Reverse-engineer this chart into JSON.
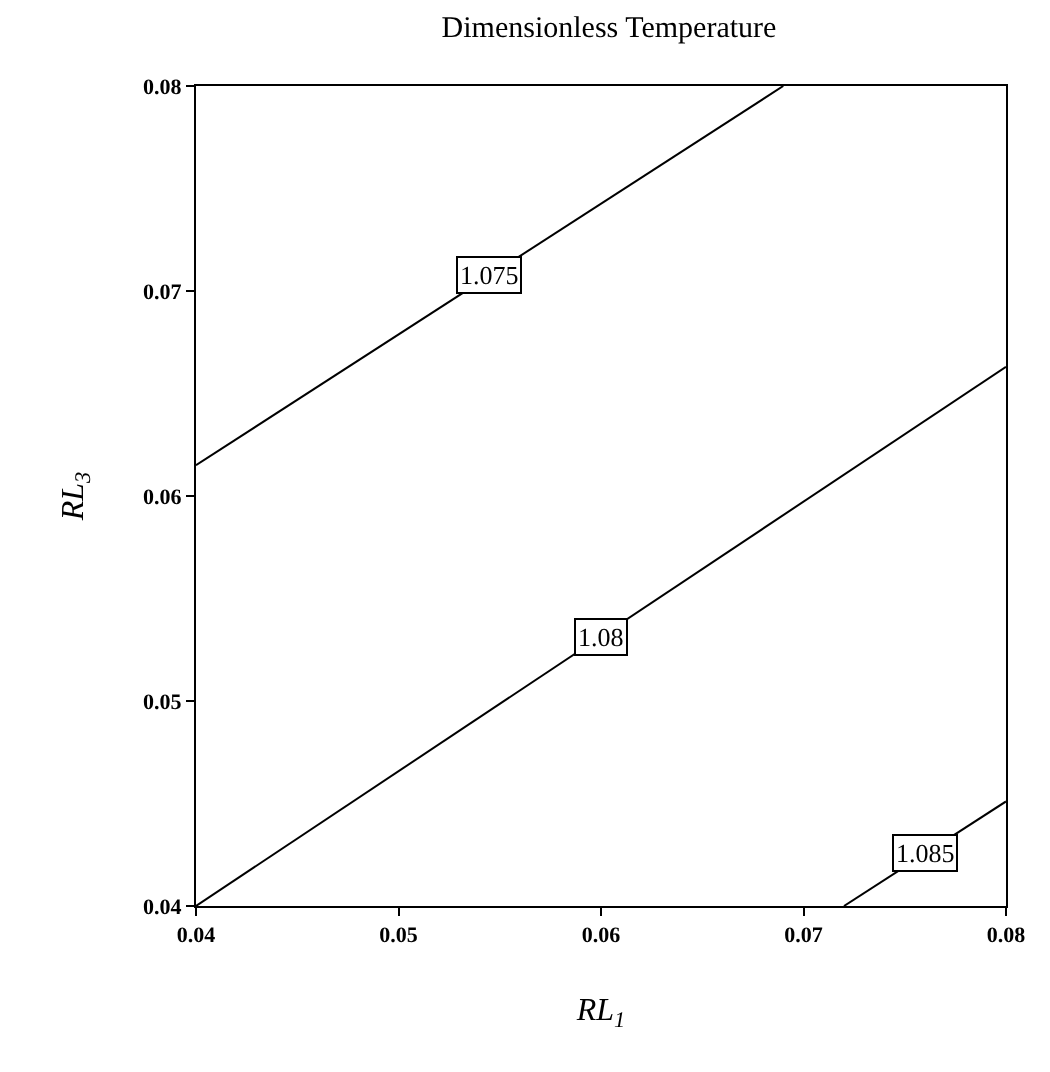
{
  "chart_data": {
    "type": "line",
    "title": "Dimensionless Temperature",
    "xlabel": "RL$_{1}$",
    "ylabel": "RL$_{3}$",
    "xlim": [
      0.04,
      0.08
    ],
    "ylim": [
      0.04,
      0.08
    ],
    "xticks": [
      0.04,
      0.05,
      0.06,
      0.07,
      0.08
    ],
    "yticks": [
      0.04,
      0.05,
      0.06,
      0.07,
      0.08
    ],
    "legend": false,
    "marker": "none",
    "line_style": "solid",
    "series": [
      {
        "name": "1.075",
        "color": "#000000",
        "x": [
          0.04,
          0.069
        ],
        "values": [
          0.0615,
          0.08
        ]
      },
      {
        "name": "1.08",
        "color": "#000000",
        "x": [
          0.04,
          0.08
        ],
        "values": [
          0.04,
          0.0663
        ]
      },
      {
        "name": "1.085",
        "color": "#000000",
        "x": [
          0.072,
          0.08
        ],
        "values": [
          0.04,
          0.0451
        ]
      }
    ]
  }
}
